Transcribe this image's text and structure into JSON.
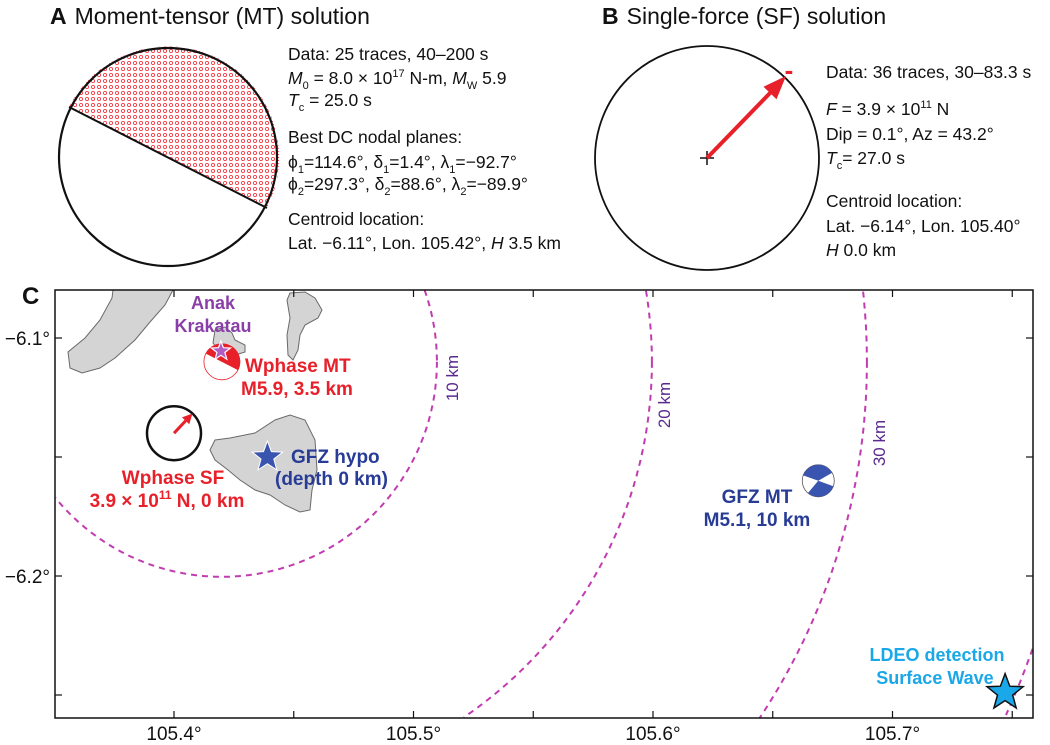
{
  "panelA": {
    "letter": "A",
    "title": "Moment-tensor (MT) solution",
    "lines": [
      [
        {
          "t": "Data: 25 traces, 40–200 s",
          "f": ""
        }
      ],
      [
        {
          "t": "M",
          "f": "i"
        },
        {
          "t": "0",
          "f": "sub"
        },
        {
          "t": " = 8.0 × 10",
          "f": ""
        },
        {
          "t": "17",
          "f": "sup"
        },
        {
          "t": " N-m, ",
          "f": ""
        },
        {
          "t": "M",
          "f": "i"
        },
        {
          "t": "W",
          "f": "sub"
        },
        {
          "t": " 5.9",
          "f": ""
        }
      ],
      [
        {
          "t": "T",
          "f": "i"
        },
        {
          "t": "c",
          "f": "sub"
        },
        {
          "t": " = 25.0 s",
          "f": ""
        }
      ],
      [
        {
          "t": "Best DC nodal planes:",
          "f": ""
        }
      ],
      [
        {
          "t": "ϕ",
          "f": ""
        },
        {
          "t": "1",
          "f": "sub"
        },
        {
          "t": "=114.6°, δ",
          "f": ""
        },
        {
          "t": "1",
          "f": "sub"
        },
        {
          "t": "=1.4°, λ",
          "f": ""
        },
        {
          "t": "1",
          "f": "sub"
        },
        {
          "t": "=−92.7°",
          "f": ""
        }
      ],
      [
        {
          "t": "ϕ",
          "f": ""
        },
        {
          "t": "2",
          "f": "sub"
        },
        {
          "t": "=297.3°, δ",
          "f": ""
        },
        {
          "t": "2",
          "f": "sub"
        },
        {
          "t": "=88.6°, λ",
          "f": ""
        },
        {
          "t": "2",
          "f": "sub"
        },
        {
          "t": "=−89.9°",
          "f": ""
        }
      ],
      [
        {
          "t": "Centroid location:",
          "f": ""
        }
      ],
      [
        {
          "t": "Lat. −6.11°,  Lon. 105.42°, ",
          "f": ""
        },
        {
          "t": "H",
          "f": "i"
        },
        {
          "t": " 3.5 km",
          "f": ""
        }
      ]
    ]
  },
  "panelB": {
    "letter": "B",
    "title": "Single-force (SF) solution",
    "force_sign": "-",
    "lines": [
      [
        {
          "t": "Data: 36 traces, 30–83.3 s",
          "f": ""
        }
      ],
      [
        {
          "t": "F",
          "f": "i"
        },
        {
          "t": " = 3.9 × 10",
          "f": ""
        },
        {
          "t": "11",
          "f": "sup"
        },
        {
          "t": " N",
          "f": ""
        }
      ],
      [
        {
          "t": "Dip = 0.1°, Az = 43.2°",
          "f": ""
        }
      ],
      [
        {
          "t": "T",
          "f": "i"
        },
        {
          "t": "c",
          "f": "sub"
        },
        {
          "t": "= 27.0 s",
          "f": ""
        }
      ],
      [
        {
          "t": "Centroid location:",
          "f": ""
        }
      ],
      [
        {
          "t": "Lat. −6.14°,  Lon. 105.40°",
          "f": ""
        }
      ],
      [
        {
          "t": "H",
          "f": "i"
        },
        {
          "t": " 0.0 km",
          "f": ""
        }
      ]
    ]
  },
  "panelC": {
    "letter": "C",
    "lon_ticks": [
      {
        "value": 105.4,
        "label": "105.4°"
      },
      {
        "value": 105.5,
        "label": "105.5°"
      },
      {
        "value": 105.6,
        "label": "105.6°"
      },
      {
        "value": 105.7,
        "label": "105.7°"
      }
    ],
    "lat_ticks": [
      {
        "value": -6.1,
        "label": "−6.1°"
      },
      {
        "value": -6.2,
        "label": "−6.2°"
      }
    ],
    "lon_range": [
      105.35,
      105.758
    ],
    "lat_range": [
      -6.26,
      -6.08
    ],
    "ring_center": {
      "lon": 105.42,
      "lat": -6.11
    },
    "rings": [
      {
        "km": 10,
        "label": "10 km"
      },
      {
        "km": 20,
        "label": "20 km"
      },
      {
        "km": 30,
        "label": "30 km"
      },
      {
        "km": 40,
        "label": ""
      }
    ],
    "labels": {
      "anak_1": "Anak",
      "anak_2": "Krakatau",
      "wmt_1": "Wphase MT",
      "wmt_2": "M5.9, 3.5 km",
      "wsf_1": "Wphase SF",
      "wsf_2a": "3.9 × 10",
      "wsf_2sup": "11",
      "wsf_2b": " N, 0 km",
      "gfzhypo_1": "GFZ hypo",
      "gfzhypo_2": "(depth 0 km)",
      "gfzmt_1": "GFZ MT",
      "gfzmt_2": "M5.1, 10 km",
      "ldeo_1": "LDEO detection",
      "ldeo_2": "Surface Wave"
    },
    "features": {
      "wphase_mt": {
        "lon": 105.42,
        "lat": -6.11,
        "color": "#e8202a"
      },
      "wphase_sf": {
        "lon": 105.4,
        "lat": -6.14,
        "azimuth_deg": 43.2,
        "color": "#e8202a"
      },
      "anak_krakatau_star": {
        "lon": 105.4196,
        "lat": -6.1055,
        "color": "#b25cc4"
      },
      "gfz_hypo": {
        "lon": 105.439,
        "lat": -6.15,
        "color": "#3a55b0"
      },
      "gfz_mt": {
        "lon": 105.669,
        "lat": -6.16,
        "color": "#3a55b0"
      },
      "ldeo": {
        "lon": 105.747,
        "lat": -6.249,
        "color": "#1aa8e8"
      }
    }
  },
  "colors": {
    "wphase": "#e8202a",
    "gfz": "#283c96",
    "ldeo": "#1aa8e8",
    "ring": "#c13cb0",
    "anak": "#8a3fa8",
    "land": "#d4d4d4"
  }
}
